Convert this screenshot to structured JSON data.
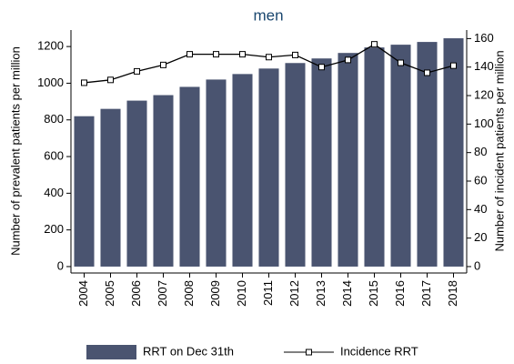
{
  "chart_data": {
    "type": "bar",
    "title": "men",
    "categories": [
      "2004",
      "2005",
      "2006",
      "2007",
      "2008",
      "2009",
      "2010",
      "2011",
      "2012",
      "2013",
      "2014",
      "2015",
      "2016",
      "2017",
      "2018"
    ],
    "series": [
      {
        "name": "RRT on Dec 31th",
        "type": "bar",
        "color": "#4a5470",
        "values": [
          820,
          860,
          905,
          935,
          980,
          1020,
          1050,
          1080,
          1110,
          1135,
          1165,
          1195,
          1210,
          1225,
          1245
        ]
      },
      {
        "name": "Incidence RRT",
        "type": "line",
        "axis": "y2",
        "color": "#000000",
        "values": [
          129,
          131,
          137,
          141.5,
          149,
          149,
          149,
          147,
          148.5,
          140,
          145,
          156,
          143,
          136,
          141
        ]
      }
    ],
    "ylabel": "Number of prevalent patients per million",
    "y2label": "Number of incident patients per million",
    "ylim": [
      -35,
      1290
    ],
    "yticks": [
      0,
      200,
      400,
      600,
      800,
      1000,
      1200
    ],
    "y2lim": [
      -4.5,
      166
    ],
    "y2ticks": [
      0,
      20,
      40,
      60,
      80,
      100,
      120,
      140,
      160
    ]
  }
}
